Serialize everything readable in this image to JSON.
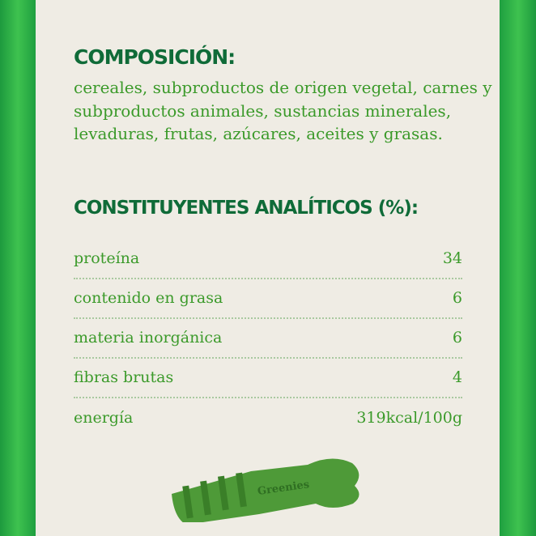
{
  "composition": {
    "title": "COMPOSICIÓN:",
    "text": "cereales, subproductos de origen vegetal, carnes y subproductos animales, sustancias minerales, levaduras, frutas, azúcares, aceites y grasas."
  },
  "analytics": {
    "title": "CONSTITUYENTES ANALÍTICOS (%):",
    "rows": [
      {
        "label": "proteína",
        "value": "34"
      },
      {
        "label": "contenido en grasa",
        "value": "6"
      },
      {
        "label": "materia inorgánica",
        "value": "6"
      },
      {
        "label": "fibras brutas",
        "value": "4"
      },
      {
        "label": "energía",
        "value": "319kcal/100g"
      }
    ]
  },
  "product": {
    "logo_text": "Greenies",
    "colors": {
      "brand_green": "#1f9f40",
      "heading": "#0f6b38",
      "text": "#3b9a2a",
      "product": "#4e9a38"
    }
  }
}
